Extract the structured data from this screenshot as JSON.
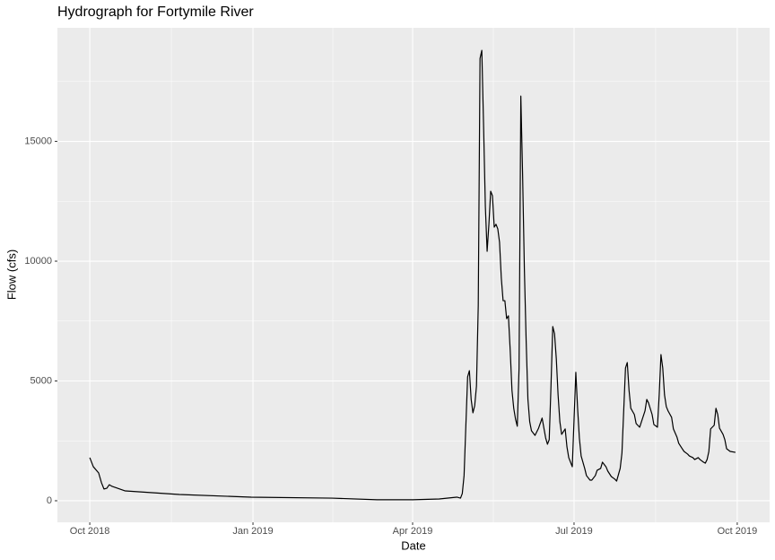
{
  "chart_data": {
    "type": "line",
    "title": "Hydrograph for Fortymile River",
    "x_label": "Date",
    "y_label": "Flow (cfs)",
    "color": "#000000",
    "grid": true,
    "xlim": [
      -18.25,
      383.25
    ],
    "xticks": [
      {
        "value": 0,
        "label": "Oct 2018"
      },
      {
        "value": 92,
        "label": "Jan 2019"
      },
      {
        "value": 182,
        "label": "Apr 2019"
      },
      {
        "value": 273,
        "label": "Jul 2019"
      },
      {
        "value": 365,
        "label": "Oct 2019"
      }
    ],
    "x_minor_ticks": [
      46,
      137,
      227.5,
      319
    ],
    "ylim": [
      -900,
      19740
    ],
    "yticks": [
      0,
      5000,
      10000,
      15000
    ],
    "y_minor_ticks": [
      2500,
      7500,
      12500,
      17500
    ],
    "x": [
      0,
      2,
      5,
      6.6,
      8,
      9.6,
      11,
      12.6,
      20,
      50.5,
      91,
      136.5,
      162,
      182,
      197,
      207,
      209,
      210,
      211,
      213,
      214,
      215,
      216,
      217,
      218,
      219,
      220,
      221,
      222,
      223,
      224,
      225,
      226,
      227,
      228,
      229,
      230,
      231,
      232,
      233,
      234,
      235,
      236,
      237,
      238,
      239,
      240,
      241,
      242,
      243,
      244,
      245,
      246,
      247,
      248,
      249,
      251,
      253,
      255,
      257,
      258,
      259,
      260,
      261,
      262,
      263,
      264,
      265,
      266,
      268,
      269,
      270,
      272,
      274,
      275,
      276,
      277,
      279,
      280,
      282,
      283,
      285,
      286,
      288,
      289,
      291,
      292,
      294,
      296,
      297,
      299,
      300,
      302,
      303,
      304,
      305,
      307,
      308,
      310,
      311,
      313,
      314,
      315,
      317,
      318,
      320,
      321,
      322,
      323,
      324,
      325,
      326,
      328,
      329,
      331,
      332,
      334,
      335,
      337,
      338,
      340,
      341,
      343,
      344,
      346,
      347,
      348,
      349,
      350,
      352,
      353,
      354,
      355,
      357,
      358,
      359,
      361,
      364
    ],
    "values": [
      1800,
      1420,
      1160,
      750,
      490,
      520,
      670,
      600,
      410,
      260,
      150,
      110,
      40,
      40,
      75,
      150,
      110,
      300,
      1050,
      5170,
      5430,
      4230,
      3670,
      3970,
      4790,
      8160,
      18460,
      18800,
      15660,
      12280,
      10410,
      11540,
      12920,
      12730,
      11420,
      11540,
      11350,
      10790,
      9290,
      8350,
      8350,
      7600,
      7720,
      6290,
      4610,
      3860,
      3410,
      3110,
      5540,
      16890,
      13600,
      9660,
      6670,
      4230,
      3300,
      2920,
      2730,
      3030,
      3450,
      2620,
      2360,
      2550,
      4790,
      7270,
      6970,
      5920,
      4420,
      3300,
      2770,
      3000,
      2250,
      1800,
      1420,
      5360,
      3860,
      2620,
      1870,
      1350,
      1050,
      860,
      860,
      1050,
      1270,
      1350,
      1610,
      1420,
      1240,
      1010,
      900,
      820,
      1350,
      1990,
      5540,
      5770,
      4610,
      3860,
      3600,
      3220,
      3070,
      3300,
      3750,
      4230,
      4080,
      3600,
      3180,
      3070,
      4420,
      6100,
      5540,
      4420,
      3930,
      3750,
      3480,
      3000,
      2660,
      2400,
      2170,
      2060,
      1950,
      1870,
      1800,
      1720,
      1800,
      1720,
      1610,
      1570,
      1720,
      2060,
      3000,
      3150,
      3860,
      3600,
      3030,
      2770,
      2550,
      2170,
      2060,
      2020
    ]
  }
}
